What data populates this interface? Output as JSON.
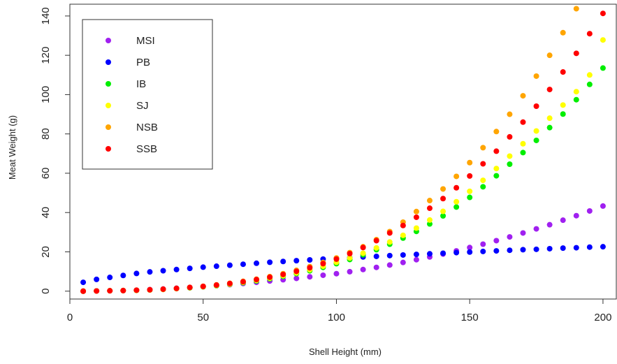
{
  "chart_data": {
    "type": "scatter",
    "title": "",
    "xlabel": "Shell Height (mm)",
    "ylabel": "Meat Weight (g)",
    "xlim": [
      0,
      205
    ],
    "ylim": [
      -4,
      146
    ],
    "xticks": [
      0,
      50,
      100,
      150,
      200
    ],
    "yticks": [
      0,
      20,
      40,
      60,
      80,
      100,
      120,
      140
    ],
    "grid": false,
    "legend_position": "top-left",
    "x": [
      5,
      10,
      15,
      20,
      25,
      30,
      35,
      40,
      45,
      50,
      55,
      60,
      65,
      70,
      75,
      80,
      85,
      90,
      95,
      100,
      105,
      110,
      115,
      120,
      125,
      130,
      135,
      140,
      145,
      150,
      155,
      160,
      165,
      170,
      175,
      180,
      185,
      190,
      195,
      200
    ],
    "series": [
      {
        "name": "MSI",
        "color": "#a020f0",
        "values": [
          0.0,
          0.1,
          0.2,
          0.3,
          0.5,
          0.8,
          1.1,
          1.5,
          1.9,
          2.4,
          2.8,
          3.3,
          3.9,
          4.5,
          5.2,
          5.8,
          6.5,
          7.3,
          8.1,
          8.9,
          9.9,
          11.0,
          12.1,
          13.3,
          14.6,
          16.0,
          17.4,
          18.9,
          20.5,
          22.2,
          23.9,
          25.7,
          27.6,
          29.6,
          31.7,
          33.8,
          36.1,
          38.4,
          40.8,
          43.3
        ]
      },
      {
        "name": "PB",
        "color": "#0000ff",
        "values": [
          4.5,
          6.0,
          7.0,
          8.0,
          9.0,
          9.8,
          10.4,
          11.0,
          11.6,
          12.2,
          12.7,
          13.2,
          13.7,
          14.2,
          14.7,
          15.1,
          15.5,
          15.9,
          16.3,
          16.7,
          17.0,
          17.4,
          17.7,
          18.1,
          18.4,
          18.7,
          19.0,
          19.3,
          19.6,
          19.9,
          20.2,
          20.5,
          20.8,
          21.1,
          21.3,
          21.6,
          21.9,
          22.1,
          22.4,
          22.6
        ]
      },
      {
        "name": "IB",
        "color": "#00ee00",
        "values": [
          0.0,
          0.1,
          0.2,
          0.3,
          0.4,
          0.6,
          0.9,
          1.3,
          1.7,
          2.2,
          2.8,
          3.5,
          4.3,
          5.2,
          6.3,
          7.5,
          8.9,
          10.4,
          12.1,
          14.0,
          16.1,
          18.5,
          21.1,
          23.9,
          27.0,
          30.4,
          34.2,
          38.3,
          42.8,
          47.7,
          53.1,
          58.7,
          64.6,
          70.5,
          76.7,
          83.2,
          90.1,
          97.4,
          105.2,
          113.5
        ]
      },
      {
        "name": "SJ",
        "color": "#ffff00",
        "values": [
          0.0,
          0.1,
          0.2,
          0.3,
          0.4,
          0.6,
          0.9,
          1.3,
          1.8,
          2.3,
          2.9,
          3.6,
          4.5,
          5.5,
          6.6,
          7.9,
          9.3,
          10.9,
          12.7,
          14.7,
          16.9,
          19.3,
          22.0,
          25.0,
          28.4,
          32.1,
          36.2,
          40.6,
          45.5,
          50.8,
          56.4,
          62.4,
          68.7,
          75.0,
          81.5,
          88.0,
          94.7,
          101.5,
          110.0,
          127.8
        ]
      },
      {
        "name": "NSB",
        "color": "#ffa500",
        "values": [
          0.0,
          0.1,
          0.2,
          0.3,
          0.5,
          0.7,
          1.0,
          1.4,
          1.9,
          2.5,
          3.2,
          4.0,
          5.0,
          6.1,
          7.4,
          8.9,
          10.6,
          12.5,
          14.6,
          16.9,
          19.6,
          22.6,
          26.2,
          30.3,
          35.1,
          40.5,
          46.1,
          52.0,
          58.4,
          65.4,
          73.0,
          81.2,
          90.0,
          99.4,
          109.4,
          120.0,
          131.5,
          143.7
        ]
      },
      {
        "name": "SSB",
        "color": "#ff0000",
        "values": [
          0.0,
          0.1,
          0.2,
          0.3,
          0.5,
          0.7,
          1.0,
          1.4,
          1.9,
          2.4,
          3.1,
          3.9,
          4.8,
          5.9,
          7.1,
          8.5,
          10.1,
          11.9,
          14.0,
          16.3,
          19.1,
          22.2,
          25.7,
          29.6,
          33.4,
          37.6,
          42.2,
          47.1,
          52.6,
          58.6,
          64.8,
          71.2,
          78.5,
          86.0,
          94.1,
          102.6,
          111.5,
          121.0,
          131.0,
          141.3
        ]
      }
    ]
  }
}
